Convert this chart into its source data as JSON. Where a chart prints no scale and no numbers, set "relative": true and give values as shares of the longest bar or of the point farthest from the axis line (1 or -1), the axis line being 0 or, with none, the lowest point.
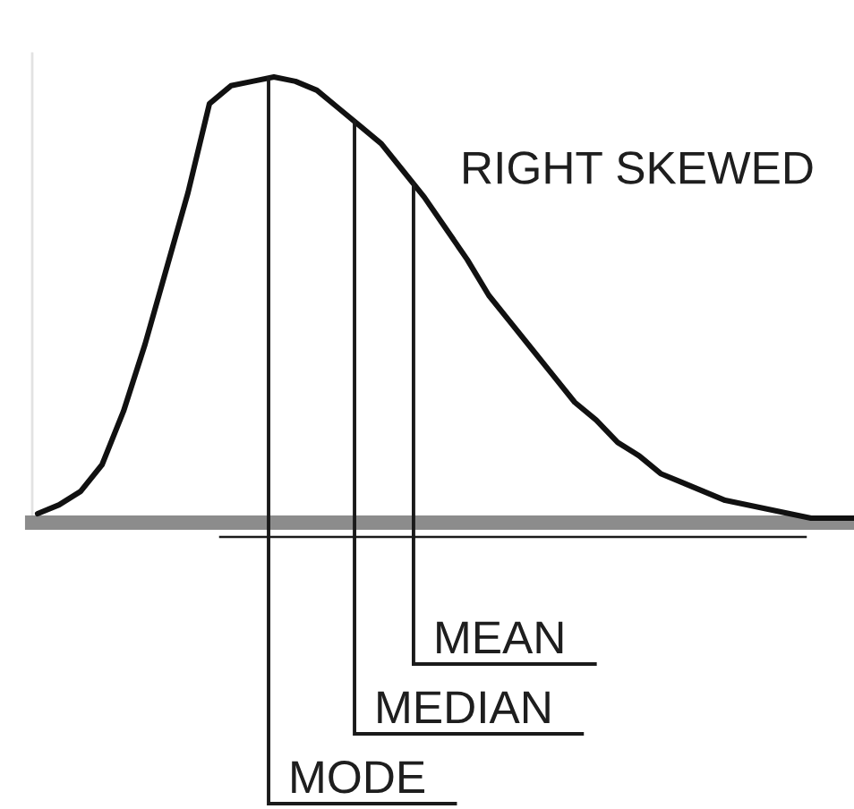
{
  "chart_data": {
    "type": "line",
    "title": "RIGHT SKEWED",
    "relative": true,
    "categories": [
      null,
      null,
      null,
      null,
      null,
      null,
      null,
      null,
      null,
      null,
      null,
      null,
      null,
      null,
      null,
      null,
      null,
      null,
      null,
      null,
      null,
      null,
      null,
      null,
      null,
      null,
      null,
      null,
      null,
      null,
      null,
      null,
      null,
      null,
      null,
      null,
      null,
      null,
      null
    ],
    "series": [
      {
        "color": "#111111",
        "values": [
          0.02,
          0.04,
          0.07,
          0.13,
          0.25,
          0.4,
          0.57,
          0.74,
          0.94,
          0.98,
          0.99,
          1,
          0.99,
          0.97,
          0.93,
          0.89,
          0.85,
          0.79,
          0.73,
          0.66,
          0.59,
          0.51,
          0.45,
          0.39,
          0.33,
          0.27,
          0.23,
          0.18,
          0.15,
          0.11,
          0.09,
          0.07,
          0.05,
          0.04,
          0.03,
          0.02,
          0.01,
          0.01,
          0.01
        ]
      }
    ],
    "annotations": [
      "MODE",
      "MEDIAN",
      "MEAN"
    ]
  }
}
